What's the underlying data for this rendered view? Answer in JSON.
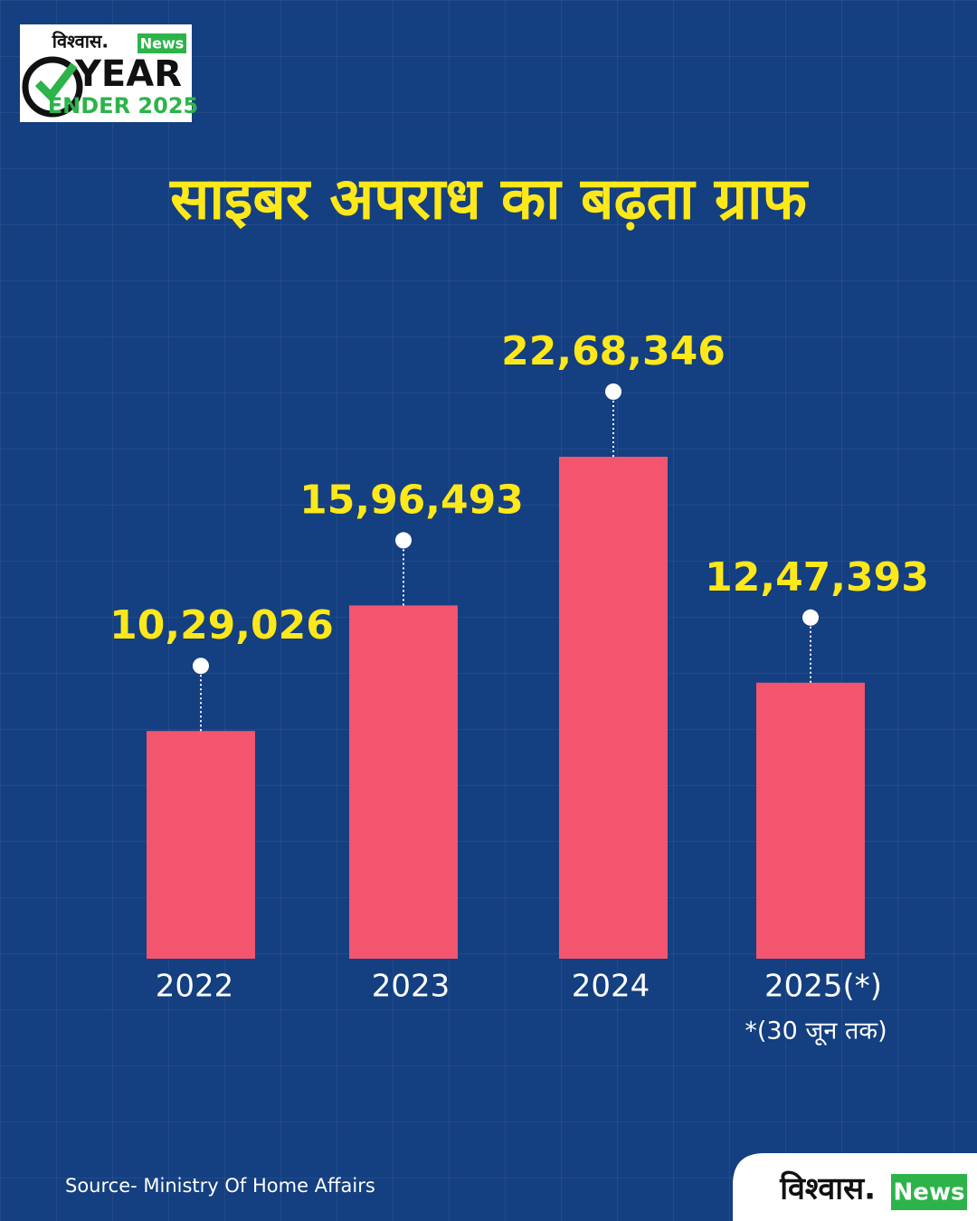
{
  "header": {
    "brand": "विश्वास.",
    "badge": "News",
    "line1": "YEAR",
    "line2": "ENDER 2025"
  },
  "chart_data": {
    "type": "bar",
    "title": "साइबर अपराध का बढ़ता ग्राफ",
    "categories": [
      "2022",
      "2023",
      "2024",
      "2025(*)"
    ],
    "values": [
      1029026,
      1596493,
      2268346,
      1247393
    ],
    "value_labels": [
      "10,29,026",
      "15,96,493",
      "22,68,346",
      "12,47,393"
    ],
    "color": "#f2556d",
    "footnote": "*(30 जून तक)"
  },
  "footer": {
    "source": "Source- Ministry Of Home Affairs",
    "brand": "विश्वास.",
    "badge": "News"
  }
}
